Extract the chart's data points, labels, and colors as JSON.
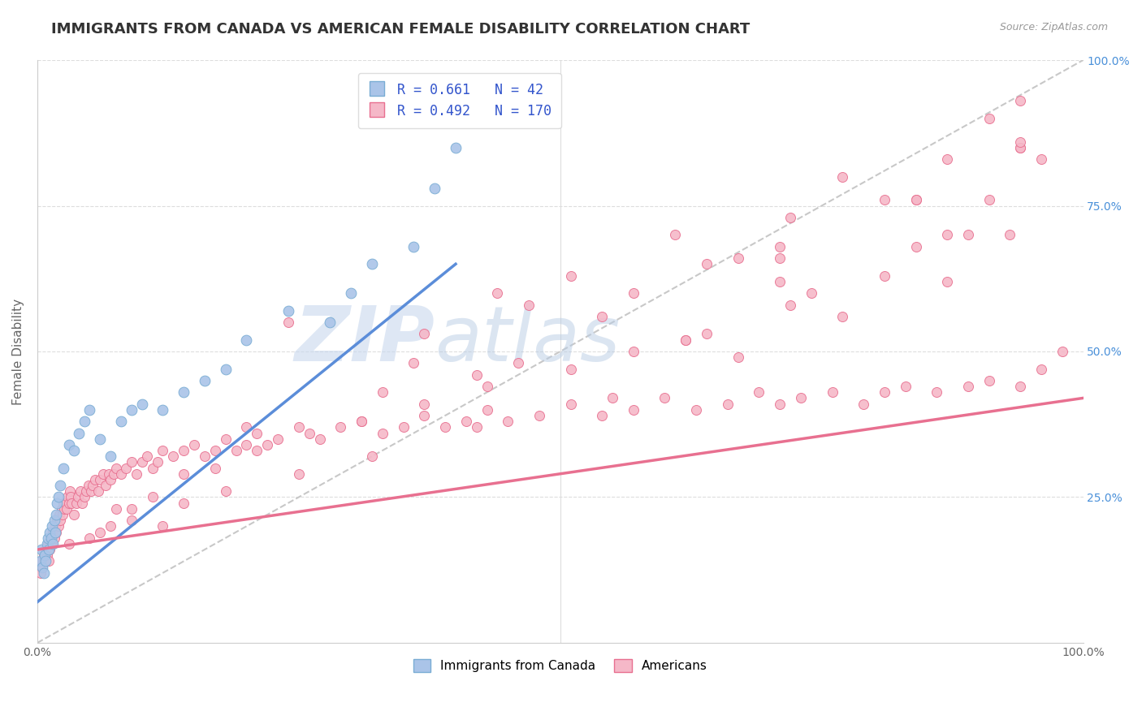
{
  "title": "IMMIGRANTS FROM CANADA VS AMERICAN FEMALE DISABILITY CORRELATION CHART",
  "source": "Source: ZipAtlas.com",
  "ylabel": "Female Disability",
  "xmin": 0.0,
  "xmax": 100.0,
  "ymin": 0.0,
  "ymax": 100.0,
  "legend_labels_bottom": [
    "Immigrants from Canada",
    "Americans"
  ],
  "blue_R": "0.661",
  "blue_N": "42",
  "pink_R": "0.492",
  "pink_N": "170",
  "blue_scatter_x": [
    0.3,
    0.4,
    0.5,
    0.6,
    0.7,
    0.8,
    0.9,
    1.0,
    1.1,
    1.2,
    1.3,
    1.4,
    1.5,
    1.6,
    1.7,
    1.8,
    1.9,
    2.0,
    2.2,
    2.5,
    3.0,
    3.5,
    4.0,
    4.5,
    5.0,
    6.0,
    7.0,
    8.0,
    9.0,
    10.0,
    12.0,
    14.0,
    16.0,
    18.0,
    20.0,
    24.0,
    28.0,
    32.0,
    36.0,
    38.0,
    40.0,
    30.0
  ],
  "blue_scatter_y": [
    14.0,
    16.0,
    13.0,
    12.0,
    15.0,
    14.0,
    17.0,
    18.0,
    16.0,
    19.0,
    18.0,
    20.0,
    17.0,
    21.0,
    19.0,
    22.0,
    24.0,
    25.0,
    27.0,
    30.0,
    34.0,
    33.0,
    36.0,
    38.0,
    40.0,
    35.0,
    32.0,
    38.0,
    40.0,
    41.0,
    40.0,
    43.0,
    45.0,
    47.0,
    52.0,
    57.0,
    55.0,
    65.0,
    68.0,
    78.0,
    85.0,
    60.0
  ],
  "pink_scatter_x": [
    0.2,
    0.3,
    0.4,
    0.5,
    0.6,
    0.7,
    0.8,
    0.9,
    1.0,
    1.1,
    1.2,
    1.3,
    1.4,
    1.5,
    1.6,
    1.7,
    1.8,
    1.9,
    2.0,
    2.1,
    2.2,
    2.3,
    2.4,
    2.5,
    2.6,
    2.7,
    2.8,
    2.9,
    3.0,
    3.1,
    3.2,
    3.3,
    3.5,
    3.7,
    3.9,
    4.1,
    4.3,
    4.5,
    4.7,
    4.9,
    5.1,
    5.3,
    5.5,
    5.8,
    6.0,
    6.3,
    6.5,
    6.8,
    7.0,
    7.3,
    7.5,
    8.0,
    8.5,
    9.0,
    9.5,
    10.0,
    10.5,
    11.0,
    11.5,
    12.0,
    13.0,
    14.0,
    15.0,
    16.0,
    17.0,
    18.0,
    19.0,
    20.0,
    21.0,
    22.0,
    23.0,
    25.0,
    27.0,
    29.0,
    31.0,
    33.0,
    35.0,
    37.0,
    39.0,
    41.0,
    43.0,
    45.0,
    48.0,
    51.0,
    54.0,
    57.0,
    60.0,
    63.0,
    66.0,
    69.0,
    71.0,
    73.0,
    76.0,
    79.0,
    81.0,
    83.0,
    86.0,
    89.0,
    91.0,
    94.0,
    96.0,
    98.0,
    7.5,
    12.0,
    20.0,
    33.0,
    46.0,
    62.0,
    71.0,
    84.0,
    5.0,
    7.0,
    9.0,
    11.0,
    14.0,
    17.0,
    21.0,
    26.0,
    31.0,
    37.0,
    43.0,
    51.0,
    57.0,
    64.0,
    72.0,
    81.0,
    89.0,
    24.0,
    44.0,
    64.0,
    3.0,
    6.0,
    9.0,
    14.0,
    18.0,
    25.0,
    32.0,
    42.0,
    55.0,
    67.0,
    77.0,
    87.0,
    93.0,
    42.0,
    62.0,
    74.0,
    87.0,
    91.0,
    96.0,
    37.0,
    57.0,
    71.0,
    81.0,
    94.0,
    47.0,
    67.0,
    84.0,
    94.0,
    51.0,
    72.0,
    87.0,
    94.0,
    61.0,
    77.0,
    91.0,
    36.0,
    54.0,
    71.0,
    84.0,
    94.0
  ],
  "pink_scatter_y": [
    13.0,
    12.0,
    14.0,
    13.0,
    15.0,
    14.0,
    16.0,
    15.0,
    17.0,
    14.0,
    16.0,
    18.0,
    17.0,
    19.0,
    18.0,
    20.0,
    19.0,
    21.0,
    20.0,
    22.0,
    21.0,
    23.0,
    22.0,
    24.0,
    23.0,
    24.0,
    23.0,
    25.0,
    24.0,
    26.0,
    25.0,
    24.0,
    22.0,
    24.0,
    25.0,
    26.0,
    24.0,
    25.0,
    26.0,
    27.0,
    26.0,
    27.0,
    28.0,
    26.0,
    28.0,
    29.0,
    27.0,
    29.0,
    28.0,
    29.0,
    30.0,
    29.0,
    30.0,
    31.0,
    29.0,
    31.0,
    32.0,
    30.0,
    31.0,
    33.0,
    32.0,
    33.0,
    34.0,
    32.0,
    33.0,
    35.0,
    33.0,
    34.0,
    36.0,
    34.0,
    35.0,
    37.0,
    35.0,
    37.0,
    38.0,
    36.0,
    37.0,
    39.0,
    37.0,
    38.0,
    40.0,
    38.0,
    39.0,
    41.0,
    39.0,
    40.0,
    42.0,
    40.0,
    41.0,
    43.0,
    41.0,
    42.0,
    43.0,
    41.0,
    43.0,
    44.0,
    43.0,
    44.0,
    45.0,
    44.0,
    47.0,
    50.0,
    23.0,
    20.0,
    37.0,
    43.0,
    48.0,
    52.0,
    62.0,
    68.0,
    18.0,
    20.0,
    23.0,
    25.0,
    29.0,
    30.0,
    33.0,
    36.0,
    38.0,
    41.0,
    44.0,
    47.0,
    50.0,
    53.0,
    58.0,
    63.0,
    70.0,
    55.0,
    60.0,
    65.0,
    17.0,
    19.0,
    21.0,
    24.0,
    26.0,
    29.0,
    32.0,
    37.0,
    42.0,
    49.0,
    56.0,
    62.0,
    70.0,
    46.0,
    52.0,
    60.0,
    70.0,
    76.0,
    83.0,
    53.0,
    60.0,
    68.0,
    76.0,
    85.0,
    58.0,
    66.0,
    76.0,
    85.0,
    63.0,
    73.0,
    83.0,
    93.0,
    70.0,
    80.0,
    90.0,
    48.0,
    56.0,
    66.0,
    76.0,
    86.0
  ],
  "blue_line_x": [
    0.0,
    40.0
  ],
  "blue_line_y": [
    7.0,
    65.0
  ],
  "pink_line_x": [
    0.0,
    100.0
  ],
  "pink_line_y": [
    16.0,
    42.0
  ],
  "diagonal_line_x": [
    0.0,
    100.0
  ],
  "diagonal_line_y": [
    0.0,
    100.0
  ],
  "watermark_zip": "ZIP",
  "watermark_atlas": "atlas",
  "blue_color": "#5b8dd9",
  "blue_scatter_color": "#aac4e8",
  "blue_scatter_edge": "#7aadd4",
  "pink_color": "#e87090",
  "pink_scatter_color": "#f5b8c8",
  "pink_scatter_edge": "#e87090",
  "diagonal_color": "#c8c8c8",
  "background_color": "#ffffff",
  "title_fontsize": 13,
  "label_fontsize": 11,
  "tick_fontsize": 10,
  "legend_fontsize": 12
}
